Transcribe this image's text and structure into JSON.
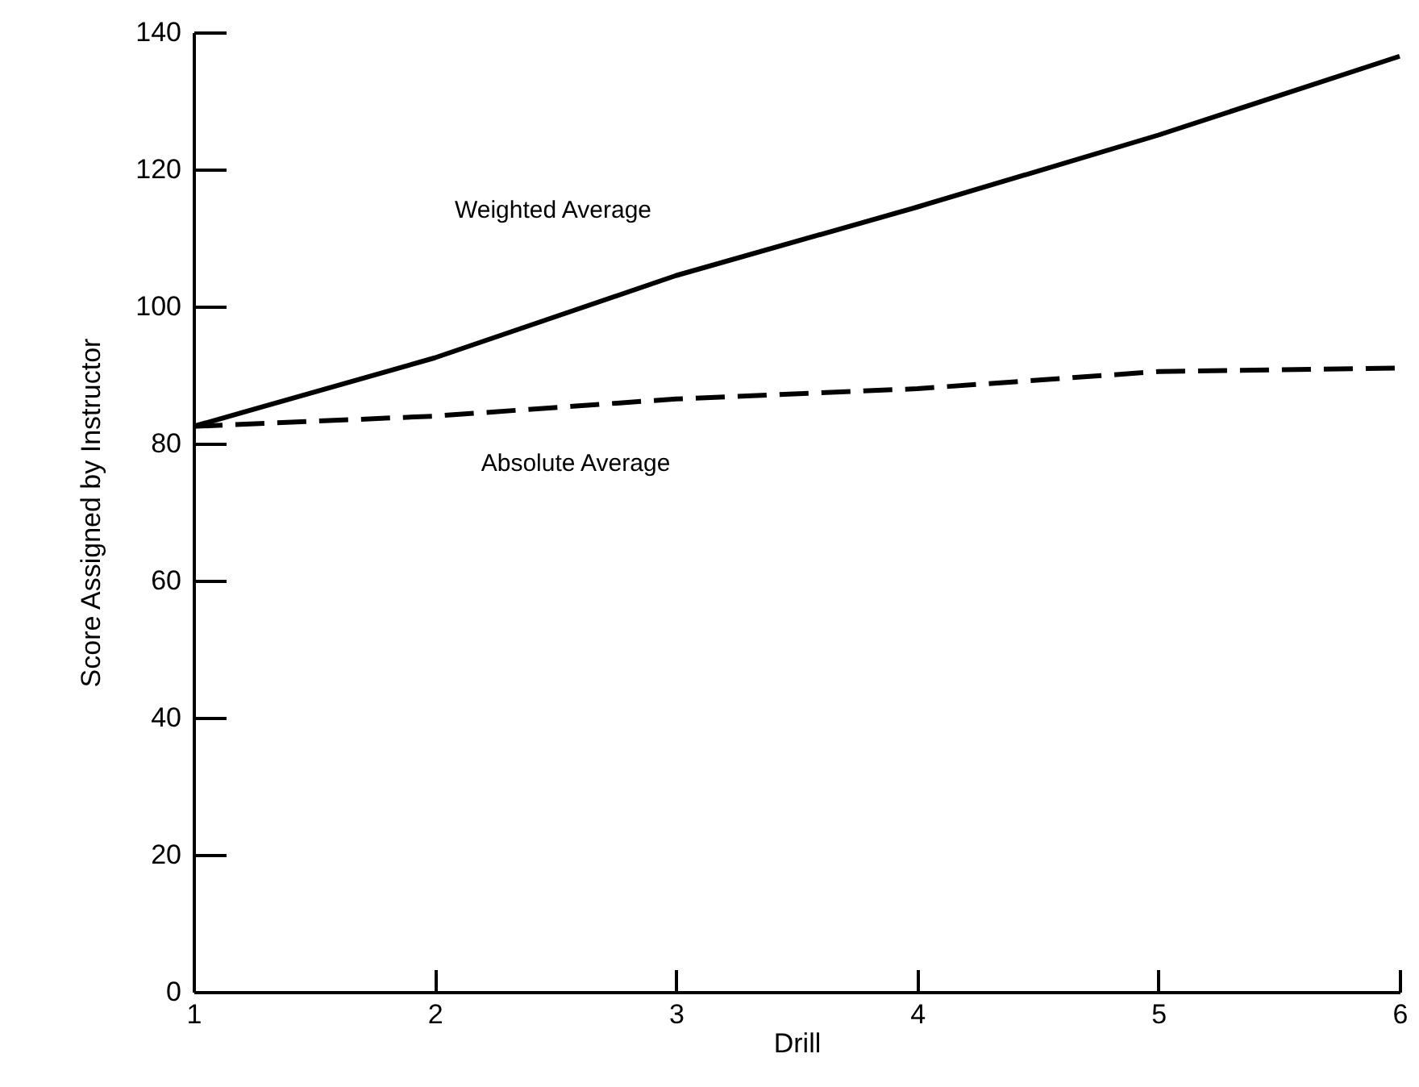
{
  "chart_data": {
    "type": "line",
    "xlabel": "Drill",
    "ylabel": "Score Assigned by Instructor",
    "x": [
      1,
      2,
      3,
      4,
      5,
      6
    ],
    "series": [
      {
        "name": "Weighted Average",
        "color": "#000000",
        "line_style": "solid",
        "values": [
          82.5,
          92.5,
          104.5,
          114.5,
          125,
          136.5
        ]
      },
      {
        "name": "Absolute Average",
        "color": "#000000",
        "line_style": "dashed",
        "values": [
          82.5,
          84,
          86.5,
          88,
          90.5,
          91
        ]
      }
    ],
    "xlim": [
      1,
      6
    ],
    "xticks": [
      1,
      2,
      3,
      4,
      5,
      6
    ],
    "ylim": [
      0,
      140
    ],
    "yticks": [
      0,
      20,
      40,
      60,
      80,
      100,
      120,
      140
    ],
    "grid": false
  }
}
